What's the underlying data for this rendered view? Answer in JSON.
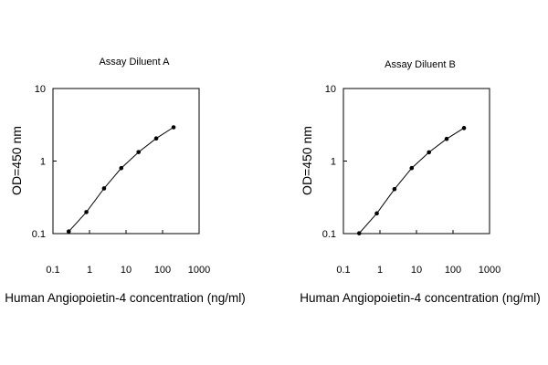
{
  "chart_data": [
    {
      "type": "line",
      "title": "Assay Diluent A",
      "xlabel": "Human Angiopoietin-4 concentration (ng/ml)",
      "ylabel": "OD=450 nm",
      "xscale": "log",
      "yscale": "log",
      "xlim": [
        0.1,
        1000
      ],
      "ylim": [
        0.1,
        10
      ],
      "xticks": [
        "0.1",
        "1",
        "10",
        "100",
        "1000"
      ],
      "yticks": [
        "0.1",
        "1",
        "10"
      ],
      "grid": false,
      "series": [
        {
          "x": [
            0.27,
            0.82,
            2.5,
            7.4,
            22,
            67,
            200
          ],
          "y": [
            0.107,
            0.198,
            0.42,
            0.8,
            1.33,
            2.05,
            2.92
          ]
        }
      ]
    },
    {
      "type": "line",
      "title": "Assay Diluent B",
      "xlabel": "Human Angiopoietin-4 concentration (ng/ml)",
      "ylabel": "OD=450 nm",
      "xscale": "log",
      "yscale": "log",
      "xlim": [
        0.1,
        1000
      ],
      "ylim": [
        0.1,
        10
      ],
      "xticks": [
        "0.1",
        "1",
        "10",
        "100",
        "1000"
      ],
      "yticks": [
        "0.1",
        "1",
        "10"
      ],
      "grid": false,
      "series": [
        {
          "x": [
            0.27,
            0.82,
            2.5,
            7.4,
            22,
            67,
            200
          ],
          "y": [
            0.101,
            0.19,
            0.41,
            0.8,
            1.32,
            2.02,
            2.85
          ]
        }
      ]
    }
  ]
}
